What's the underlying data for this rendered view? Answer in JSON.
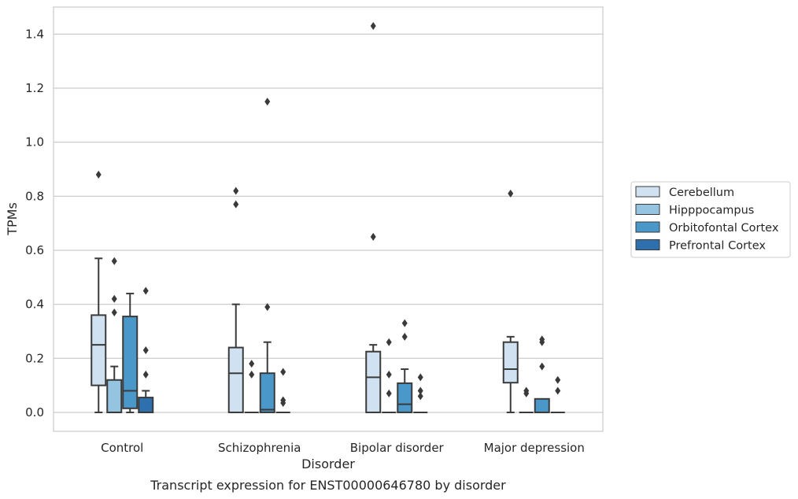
{
  "chart_data": {
    "type": "box",
    "title": "Transcript expression for ENST00000646780 by disorder",
    "xlabel": "Disorder",
    "ylabel": "TPMs",
    "ylim": [
      -0.07,
      1.5
    ],
    "yticks": [
      "0.0",
      "0.2",
      "0.4",
      "0.6",
      "0.8",
      "1.0",
      "1.2",
      "1.4"
    ],
    "ytick_values": [
      0.0,
      0.2,
      0.4,
      0.6,
      0.8,
      1.0,
      1.2,
      1.4
    ],
    "grid": true,
    "legend_position": "right",
    "categories": [
      "Control",
      "Schizophrenia",
      "Bipolar disorder",
      "Major depression"
    ],
    "series": [
      {
        "name": "Cerebellum",
        "color": "#d0e1f2",
        "boxes": [
          {
            "q1": 0.1,
            "median": 0.25,
            "q3": 0.36,
            "whislo": 0.0,
            "whishi": 0.57,
            "fliers": [
              0.88
            ]
          },
          {
            "q1": 0.0,
            "median": 0.145,
            "q3": 0.24,
            "whislo": 0.0,
            "whishi": 0.4,
            "fliers": [
              0.77,
              0.82
            ]
          },
          {
            "q1": 0.0,
            "median": 0.13,
            "q3": 0.225,
            "whislo": 0.0,
            "whishi": 0.25,
            "fliers": [
              0.65,
              1.43
            ]
          },
          {
            "q1": 0.11,
            "median": 0.16,
            "q3": 0.26,
            "whislo": 0.0,
            "whishi": 0.28,
            "fliers": [
              0.81
            ]
          }
        ]
      },
      {
        "name": "Hipppocampus",
        "color": "#94c4df",
        "boxes": [
          {
            "q1": 0.0,
            "median": 0.0,
            "q3": 0.12,
            "whislo": 0.0,
            "whishi": 0.17,
            "fliers": [
              0.37,
              0.42,
              0.56
            ]
          },
          {
            "q1": 0.0,
            "median": 0.0,
            "q3": 0.0,
            "whislo": 0.0,
            "whishi": 0.0,
            "fliers": [
              0.14,
              0.18
            ]
          },
          {
            "q1": 0.0,
            "median": 0.0,
            "q3": 0.0,
            "whislo": 0.0,
            "whishi": 0.0,
            "fliers": [
              0.07,
              0.14,
              0.26
            ]
          },
          {
            "q1": 0.0,
            "median": 0.0,
            "q3": 0.0,
            "whislo": 0.0,
            "whishi": 0.0,
            "fliers": [
              0.07,
              0.08
            ]
          }
        ]
      },
      {
        "name": "Orbitofontal Cortex",
        "color": "#4a98c9",
        "boxes": [
          {
            "q1": 0.015,
            "median": 0.08,
            "q3": 0.355,
            "whislo": 0.0,
            "whishi": 0.44,
            "fliers": []
          },
          {
            "q1": 0.0,
            "median": 0.01,
            "q3": 0.145,
            "whislo": 0.0,
            "whishi": 0.26,
            "fliers": [
              0.39,
              1.15
            ]
          },
          {
            "q1": 0.0,
            "median": 0.03,
            "q3": 0.108,
            "whislo": 0.0,
            "whishi": 0.16,
            "fliers": [
              0.28,
              0.33
            ]
          },
          {
            "q1": 0.0,
            "median": 0.0,
            "q3": 0.05,
            "whislo": 0.0,
            "whishi": 0.05,
            "fliers": [
              0.17,
              0.26,
              0.27
            ]
          }
        ]
      },
      {
        "name": "Prefrontal Cortex",
        "color": "#2e6fae",
        "boxes": [
          {
            "q1": 0.0,
            "median": 0.0,
            "q3": 0.055,
            "whislo": 0.0,
            "whishi": 0.08,
            "fliers": [
              0.14,
              0.23,
              0.45
            ]
          },
          {
            "q1": 0.0,
            "median": 0.0,
            "q3": 0.0,
            "whislo": 0.0,
            "whishi": 0.0,
            "fliers": [
              0.035,
              0.045,
              0.15
            ]
          },
          {
            "q1": 0.0,
            "median": 0.0,
            "q3": 0.0,
            "whislo": 0.0,
            "whishi": 0.0,
            "fliers": [
              0.06,
              0.08,
              0.13
            ]
          },
          {
            "q1": 0.0,
            "median": 0.0,
            "q3": 0.0,
            "whislo": 0.0,
            "whishi": 0.0,
            "fliers": [
              0.08,
              0.12
            ]
          }
        ]
      }
    ]
  }
}
